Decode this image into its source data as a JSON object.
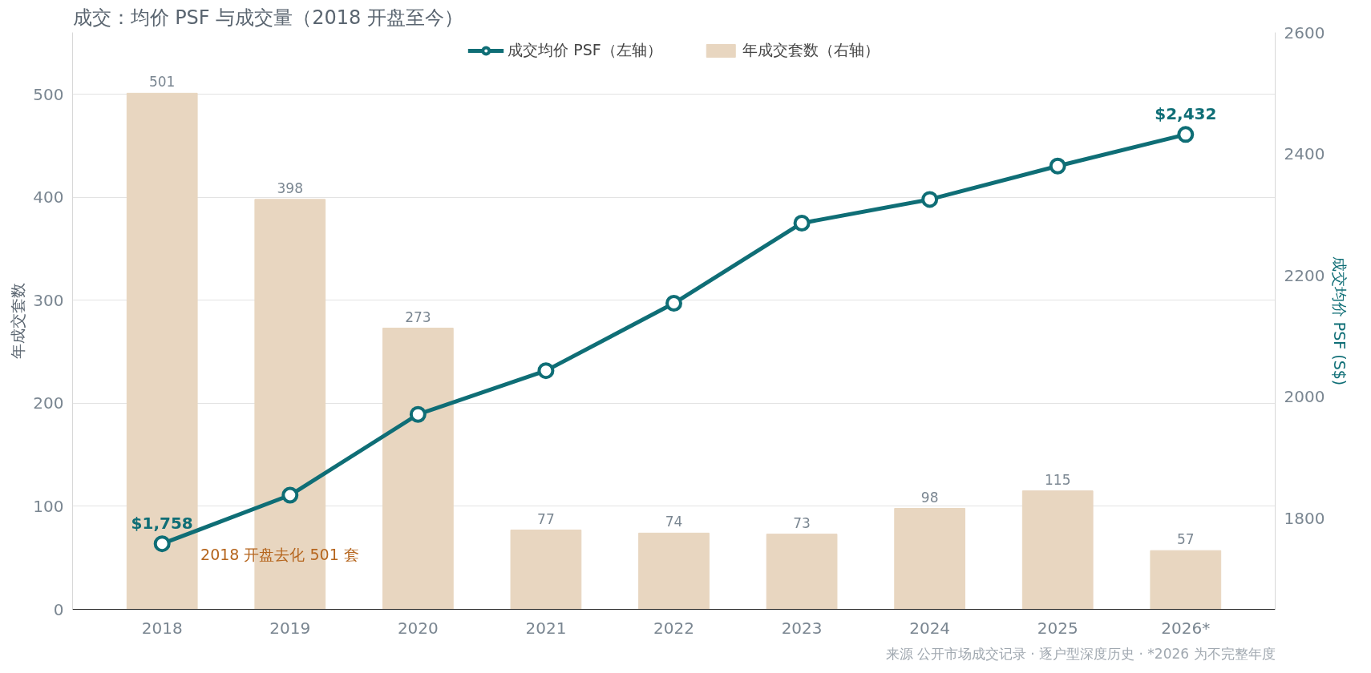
{
  "chart_data": {
    "type": "bar",
    "title": "成交：均价 PSF 与成交量（2018 开盘至今）",
    "categories": [
      "2018",
      "2019",
      "2020",
      "2021",
      "2022",
      "2023",
      "2024",
      "2025",
      "2026*"
    ],
    "series": [
      {
        "name": "成交均价 PSF（左轴）",
        "type": "line",
        "axis": "y2",
        "color": "#0f6e76",
        "marker": "circle",
        "values": [
          1758,
          1838,
          1971,
          2043,
          2154,
          2286,
          2325,
          2380,
          2432
        ],
        "value_labels": [
          "$1,758",
          null,
          null,
          null,
          null,
          null,
          null,
          null,
          "$2,432"
        ]
      },
      {
        "name": "年成交套数（右轴）",
        "color": "#e8d6c0",
        "values": [
          501,
          398,
          273,
          77,
          74,
          73,
          98,
          115,
          57
        ],
        "data_labels": true
      }
    ],
    "ylabel": "年成交套数",
    "y2label": "成交均价 PSF (S$)",
    "ylim": [
      0,
      560
    ],
    "yticks": [
      0,
      100,
      200,
      300,
      400,
      500
    ],
    "y2lim": [
      1650,
      2600
    ],
    "y2ticks": [
      1800,
      2000,
      2200,
      2400,
      2600
    ],
    "grid": "y",
    "legend": "top",
    "annotations": [
      "2018 开盘去化 501 套",
      "来源 公开市场成交记录 · 逐户型深度历史 · *2026 为不完整年度"
    ]
  }
}
